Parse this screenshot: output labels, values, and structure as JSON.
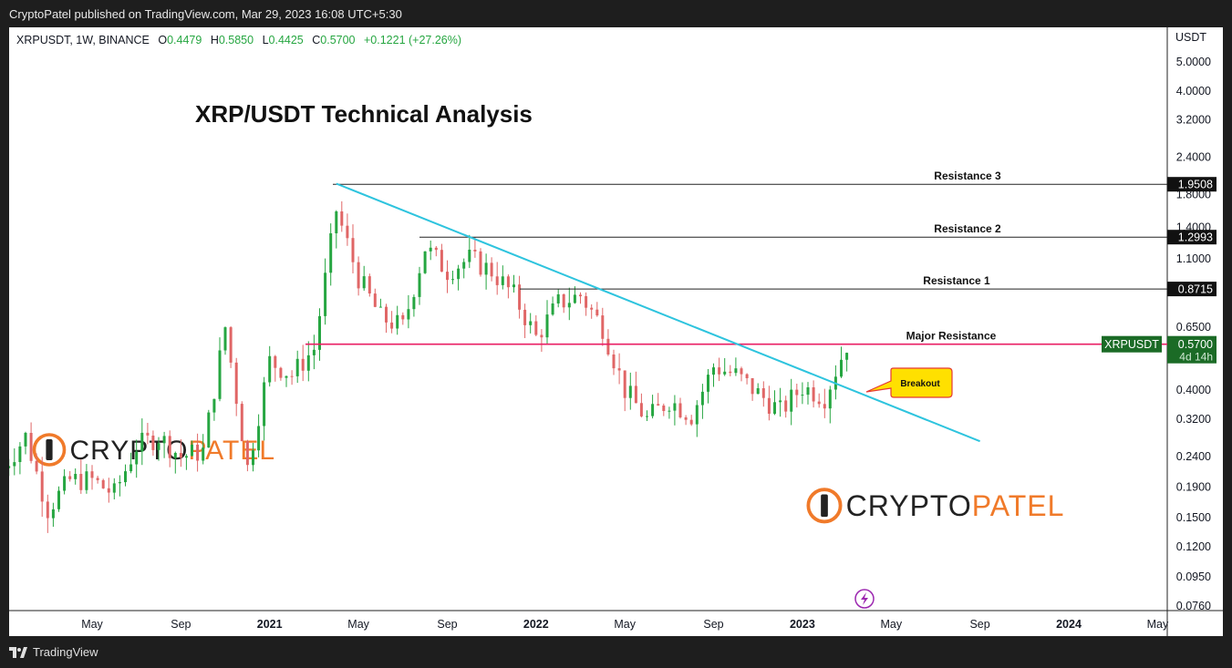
{
  "header": {
    "published": "CryptoPatel published on TradingView.com, Mar 29, 2023 16:08 UTC+5:30"
  },
  "footer": {
    "brand": "TradingView"
  },
  "colors": {
    "up": "#26a641",
    "down": "#e06666",
    "trendline": "#2ec4de",
    "major": "#e91e63",
    "resistance": "#222222",
    "brand_orange": "#f07a2a",
    "badge_green": "#1b6b26",
    "callout": "#ffe000"
  },
  "legend": {
    "symbol": "XRPUSDT, 1W, BINANCE",
    "o_label": "O",
    "o_value": "0.4479",
    "h_label": "H",
    "h_value": "0.5850",
    "l_label": "L",
    "l_value": "0.4425",
    "c_label": "C",
    "c_value": "0.5700",
    "change": "+0.1221 (+27.26%)"
  },
  "logo_text": "CRYPTOPATEL",
  "chart_data": {
    "type": "candlestick",
    "title": "XRP/USDT Technical Analysis",
    "y_axis_title": "USDT",
    "y_scale": "log",
    "ylim": [
      0.07,
      6.0
    ],
    "y_ticks": [
      "5.0000",
      "4.0000",
      "3.2000",
      "2.4000",
      "1.8000",
      "1.4000",
      "1.1000",
      "0.6500",
      "0.4000",
      "0.3200",
      "0.2400",
      "0.1900",
      "0.1500",
      "0.1200",
      "0.0950",
      "0.0760"
    ],
    "x_ticks": [
      "May",
      "Sep",
      "2021",
      "May",
      "Sep",
      "2022",
      "May",
      "Sep",
      "2023",
      "May",
      "Sep",
      "2024",
      "May"
    ],
    "x_tick_dates": [
      "2020-05",
      "2020-09",
      "2021-01",
      "2021-05",
      "2021-09",
      "2022-01",
      "2022-05",
      "2022-09",
      "2023-01",
      "2023-05",
      "2023-09",
      "2024-01",
      "2024-05"
    ],
    "levels": [
      {
        "label": "Resistance 3",
        "value": 1.9508,
        "price": "1.9508"
      },
      {
        "label": "Resistance 2",
        "value": 1.2993,
        "price": "1.2993"
      },
      {
        "label": "Resistance 1",
        "value": 0.8715,
        "price": "0.8715"
      },
      {
        "label": "Major Resistance",
        "value": 0.57,
        "price": "0.5700"
      }
    ],
    "last_price": {
      "symbol": "XRPUSDT",
      "price": "0.5700",
      "countdown": "4d 14h"
    },
    "annotation": "Breakout",
    "trendline": {
      "start": {
        "date": "2021-04",
        "value": 1.96
      },
      "end": {
        "date": "2023-09",
        "value": 0.27
      }
    },
    "series": [
      {
        "date": "2020-01",
        "close": 0.22
      },
      {
        "date": "2020-02",
        "close": 0.28
      },
      {
        "date": "2020-03",
        "close": 0.16
      },
      {
        "date": "2020-04",
        "close": 0.2
      },
      {
        "date": "2020-05",
        "close": 0.2
      },
      {
        "date": "2020-06",
        "close": 0.18
      },
      {
        "date": "2020-07",
        "close": 0.26
      },
      {
        "date": "2020-08",
        "close": 0.28
      },
      {
        "date": "2020-09",
        "close": 0.24
      },
      {
        "date": "2020-10",
        "close": 0.25
      },
      {
        "date": "2020-11",
        "close": 0.65
      },
      {
        "date": "2020-12",
        "close": 0.22
      },
      {
        "date": "2021-01",
        "close": 0.5
      },
      {
        "date": "2021-02",
        "close": 0.45
      },
      {
        "date": "2021-03",
        "close": 0.55
      },
      {
        "date": "2021-04",
        "close": 1.6
      },
      {
        "date": "2021-05",
        "close": 0.95
      },
      {
        "date": "2021-06",
        "close": 0.7
      },
      {
        "date": "2021-07",
        "close": 0.65
      },
      {
        "date": "2021-08",
        "close": 1.2
      },
      {
        "date": "2021-09",
        "close": 1.0
      },
      {
        "date": "2021-10",
        "close": 1.1
      },
      {
        "date": "2021-11",
        "close": 1.0
      },
      {
        "date": "2021-12",
        "close": 0.83
      },
      {
        "date": "2022-01",
        "close": 0.6
      },
      {
        "date": "2022-02",
        "close": 0.78
      },
      {
        "date": "2022-03",
        "close": 0.83
      },
      {
        "date": "2022-04",
        "close": 0.65
      },
      {
        "date": "2022-05",
        "close": 0.4
      },
      {
        "date": "2022-06",
        "close": 0.32
      },
      {
        "date": "2022-07",
        "close": 0.37
      },
      {
        "date": "2022-08",
        "close": 0.33
      },
      {
        "date": "2022-09",
        "close": 0.48
      },
      {
        "date": "2022-10",
        "close": 0.45
      },
      {
        "date": "2022-11",
        "close": 0.39
      },
      {
        "date": "2022-12",
        "close": 0.34
      },
      {
        "date": "2023-01",
        "close": 0.41
      },
      {
        "date": "2023-02",
        "close": 0.38
      },
      {
        "date": "2023-03",
        "close": 0.57
      }
    ]
  }
}
